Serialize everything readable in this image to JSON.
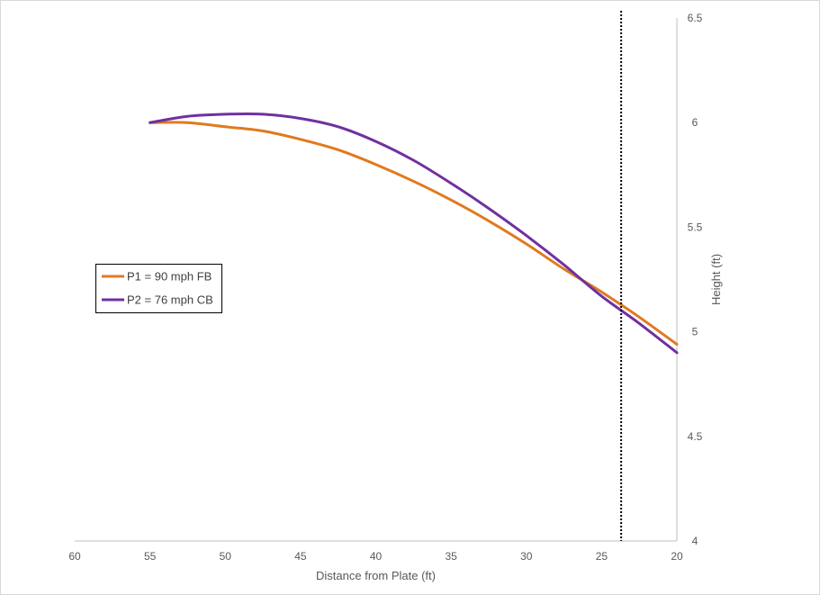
{
  "chart_data": {
    "type": "line",
    "title": "",
    "xlabel": "Distance from Plate (ft)",
    "ylabel": "Height (ft)",
    "xlim": [
      60,
      20
    ],
    "ylim": [
      4,
      6.5
    ],
    "x_reversed": true,
    "y_axis_side": "right",
    "grid": false,
    "legend_position": "left",
    "x_ticks": [
      "60",
      "55",
      "50",
      "45",
      "40",
      "35",
      "30",
      "25",
      "20"
    ],
    "y_ticks": [
      "4",
      "4.5",
      "5",
      "5.5",
      "6",
      "6.5"
    ],
    "vertical_reference_line": {
      "x": 23.7,
      "style": "dotted",
      "color": "#000000"
    },
    "series": [
      {
        "name": "P1 = 90 mph FB",
        "color": "#E07A1E",
        "x": [
          55,
          52.5,
          50,
          47.5,
          45,
          42.5,
          40,
          37.5,
          35,
          32.5,
          30,
          27.5,
          25,
          22.5,
          20
        ],
        "y": [
          6.0,
          6.0,
          5.98,
          5.96,
          5.92,
          5.87,
          5.8,
          5.72,
          5.63,
          5.53,
          5.42,
          5.3,
          5.19,
          5.07,
          4.94
        ]
      },
      {
        "name": "P2 = 76 mph CB",
        "color": "#7030A0",
        "x": [
          55,
          52.5,
          50,
          47.5,
          45,
          42.5,
          40,
          37.5,
          35,
          32.5,
          30,
          27.5,
          25,
          22.5,
          20
        ],
        "y": [
          6.0,
          6.03,
          6.04,
          6.04,
          6.02,
          5.98,
          5.91,
          5.82,
          5.71,
          5.59,
          5.46,
          5.32,
          5.17,
          5.04,
          4.9
        ]
      }
    ]
  }
}
